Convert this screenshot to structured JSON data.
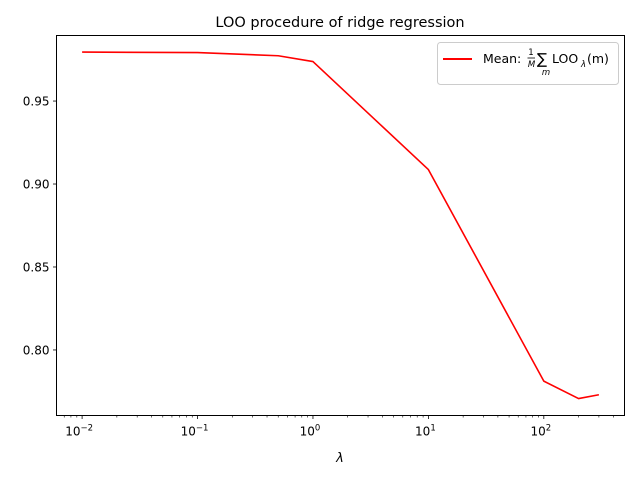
{
  "chart_data": {
    "type": "line",
    "title": "LOO procedure of ridge regression",
    "xlabel": "λ",
    "ylabel": "",
    "xscale": "log",
    "xlim": [
      0.006,
      500
    ],
    "ylim": [
      0.7605,
      0.9895
    ],
    "grid": false,
    "legend_position": "upper right",
    "x_ticks": [
      {
        "value": 0.01,
        "base": "10",
        "exp": "−2"
      },
      {
        "value": 0.1,
        "base": "10",
        "exp": "−1"
      },
      {
        "value": 1,
        "base": "10",
        "exp": "0"
      },
      {
        "value": 10,
        "base": "10",
        "exp": "1"
      },
      {
        "value": 100,
        "base": "10",
        "exp": "2"
      }
    ],
    "y_ticks": [
      {
        "value": 0.8,
        "label": "0.80"
      },
      {
        "value": 0.85,
        "label": "0.85"
      },
      {
        "value": 0.9,
        "label": "0.90"
      },
      {
        "value": 0.95,
        "label": "0.95"
      }
    ],
    "series": [
      {
        "name": "Mean: (1/M) Σ_m LOO_λ(m)",
        "legend": {
          "prefix": "Mean: ",
          "frac_num": "1",
          "frac_den": "M",
          "sum": "∑",
          "sum_sub": "m",
          "body": "LOO",
          "body_sub": "λ",
          "arg": "(m)"
        },
        "color": "#ff0000",
        "x": [
          0.01,
          0.1,
          0.5,
          1,
          10,
          100,
          200,
          300
        ],
        "y": [
          0.9795,
          0.9792,
          0.9773,
          0.9738,
          0.9087,
          0.7812,
          0.7707,
          0.773
        ]
      }
    ]
  }
}
